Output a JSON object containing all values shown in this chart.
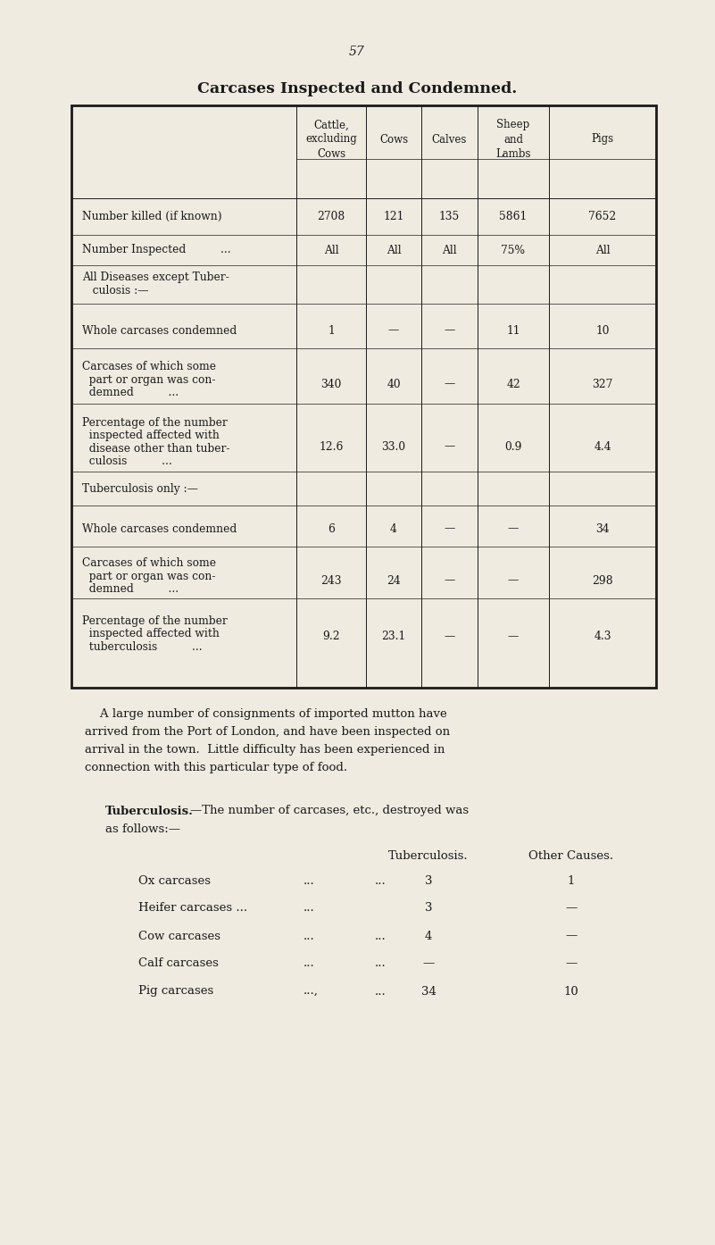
{
  "page_number": "57",
  "title": "Carcases Inspected and Condemned.",
  "bg_color": "#f0ebe0",
  "text_color": "#1a1a1a",
  "table": {
    "col_headers": [
      "Cattle,\nexcluding\nCows",
      "Cows",
      "Calves",
      "Sheep\nand\nLambs",
      "Pigs"
    ],
    "rows": [
      {
        "label": "Number killed (if known)",
        "values": [
          "2708",
          "121",
          "135",
          "5861",
          "7652"
        ],
        "n_label_lines": 1
      },
      {
        "label": "Number Inspected          ...",
        "values": [
          "All",
          "All",
          "All",
          "75%",
          "All"
        ],
        "n_label_lines": 1
      },
      {
        "label": "All Diseases except Tuber-\n   culosis :—",
        "values": [
          "",
          "",
          "",
          "",
          ""
        ],
        "n_label_lines": 2,
        "section_header": true
      },
      {
        "label": "Whole carcases condemned",
        "values": [
          "1",
          "—",
          "—",
          "11",
          "10"
        ],
        "n_label_lines": 1
      },
      {
        "label": "Carcases of which some\n  part or organ was con-\n  demned          ...",
        "values": [
          "340",
          "40",
          "—",
          "42",
          "327"
        ],
        "n_label_lines": 3
      },
      {
        "label": "Percentage of the number\n  inspected affected with\n  disease other than tuber-\n  culosis          ...",
        "values": [
          "12.6",
          "33.0",
          "—",
          "0.9",
          "4.4"
        ],
        "n_label_lines": 4
      },
      {
        "label": "Tuberculosis only :—",
        "values": [
          "",
          "",
          "",
          "",
          ""
        ],
        "n_label_lines": 1,
        "section_header": true
      },
      {
        "label": "Whole carcases condemned",
        "values": [
          "6",
          "4",
          "—",
          "—",
          "34"
        ],
        "n_label_lines": 1
      },
      {
        "label": "Carcases of which some\n  part or organ was con-\n  demned          ...",
        "values": [
          "243",
          "24",
          "—",
          "—",
          "298"
        ],
        "n_label_lines": 3
      },
      {
        "label": "Percentage of the number\n  inspected affected with\n  tuberculosis          ...",
        "values": [
          "9.2",
          "23.1",
          "—",
          "—",
          "4.3"
        ],
        "n_label_lines": 3
      }
    ]
  },
  "paragraph": "A large number of consignments of imported mutton have arrived from the Port of London, and have been inspected on arrival in the town.  Little difficulty has been experienced in connection with this particular type of food.",
  "tb_bold": "Tuberculosis.",
  "tb_rest": "—The number of carcases, etc., destroyed was as follows:—",
  "tb_table": {
    "col1_header": "Tuberculosis.",
    "col2_header": "Other Causes.",
    "rows": [
      {
        "label": "Ox carcases",
        "dots1": "...",
        "dots2": "...",
        "col1": "3",
        "col2": "1"
      },
      {
        "label": "Heifer carcases ...",
        "dots1": "...",
        "col1": "3",
        "col2": "—"
      },
      {
        "label": "Cow carcases",
        "dots1": "...",
        "dots2": "...",
        "col1": "4",
        "col2": "—"
      },
      {
        "label": "Calf carcases",
        "dots1": "...",
        "dots2": "...",
        "col1": "—",
        "col2": "—"
      },
      {
        "label": "Pig carcases",
        "dots1": "...,",
        "dots2": "...",
        "col1": "34",
        "col2": "10"
      }
    ]
  }
}
